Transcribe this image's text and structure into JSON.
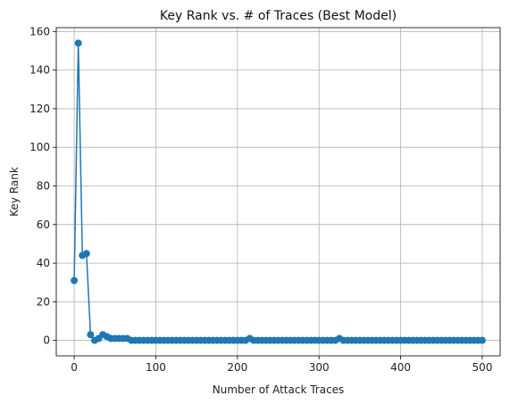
{
  "chart_data": {
    "type": "line",
    "title": "Key Rank vs. # of Traces (Best Model)",
    "xlabel": "Number of Attack Traces",
    "ylabel": "Key Rank",
    "xlim": [
      -22,
      522
    ],
    "ylim": [
      -8,
      162
    ],
    "xticks": [
      0,
      100,
      200,
      300,
      400,
      500
    ],
    "yticks": [
      0,
      20,
      40,
      60,
      80,
      100,
      120,
      140,
      160
    ],
    "grid": true,
    "legend": "none",
    "color": "#1f77b4",
    "series": [
      {
        "x": [
          0,
          5,
          10,
          15,
          20,
          25,
          30,
          35,
          40,
          45,
          50,
          55,
          60,
          65,
          70,
          75,
          80,
          85,
          90,
          95,
          100,
          105,
          110,
          115,
          120,
          125,
          130,
          135,
          140,
          145,
          150,
          155,
          160,
          165,
          170,
          175,
          180,
          185,
          190,
          195,
          200,
          205,
          210,
          215,
          220,
          225,
          230,
          235,
          240,
          245,
          250,
          255,
          260,
          265,
          270,
          275,
          280,
          285,
          290,
          295,
          300,
          305,
          310,
          315,
          320,
          325,
          330,
          335,
          340,
          345,
          350,
          355,
          360,
          365,
          370,
          375,
          380,
          385,
          390,
          395,
          400,
          405,
          410,
          415,
          420,
          425,
          430,
          435,
          440,
          445,
          450,
          455,
          460,
          465,
          470,
          475,
          480,
          485,
          490,
          495,
          500
        ],
        "y": [
          31,
          154,
          44,
          45,
          3,
          0,
          1,
          3,
          2,
          1,
          1,
          1,
          1,
          1,
          0,
          0,
          0,
          0,
          0,
          0,
          0,
          0,
          0,
          0,
          0,
          0,
          0,
          0,
          0,
          0,
          0,
          0,
          0,
          0,
          0,
          0,
          0,
          0,
          0,
          0,
          0,
          0,
          0,
          1,
          0,
          0,
          0,
          0,
          0,
          0,
          0,
          0,
          0,
          0,
          0,
          0,
          0,
          0,
          0,
          0,
          0,
          0,
          0,
          0,
          0,
          1,
          0,
          0,
          0,
          0,
          0,
          0,
          0,
          0,
          0,
          0,
          0,
          0,
          0,
          0,
          0,
          0,
          0,
          0,
          0,
          0,
          0,
          0,
          0,
          0,
          0,
          0,
          0,
          0,
          0,
          0,
          0,
          0,
          0,
          0,
          0
        ]
      }
    ]
  }
}
